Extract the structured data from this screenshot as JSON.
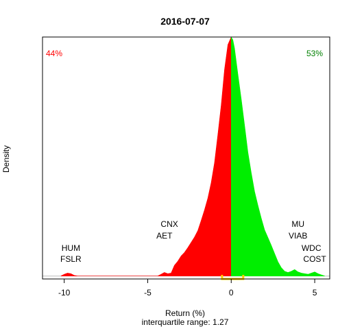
{
  "chart_data": {
    "type": "area",
    "title": "2016-07-07",
    "xlabel": "Return (%)",
    "subtitle": "interquartile range: 1.27",
    "ylabel": "Density",
    "xlim": [
      -11.3,
      5.9
    ],
    "ylim": [
      -0.005,
      0.405
    ],
    "x_ticks": [
      -10,
      -5,
      0,
      5
    ],
    "x_tick_labels": [
      "-10",
      "-5",
      "0",
      "5"
    ],
    "pct_negative": "44%",
    "pct_positive": "53%",
    "colors": {
      "negative": "#ff0000",
      "positive": "#00ee00",
      "iqr": "#ffcc00",
      "baseline": "#bebebe",
      "title": "#000000"
    },
    "iqr": [
      -0.55,
      0.72
    ],
    "split_at": 0,
    "density": {
      "x": [
        -10.2,
        -10.0,
        -9.8,
        -9.6,
        -9.4,
        -9.2,
        -4.4,
        -4.2,
        -4.0,
        -3.8,
        -3.6,
        -3.4,
        -3.2,
        -3.0,
        -2.8,
        -2.6,
        -2.4,
        -2.2,
        -2.0,
        -1.8,
        -1.6,
        -1.4,
        -1.2,
        -1.0,
        -0.8,
        -0.6,
        -0.4,
        -0.2,
        0.0,
        0.1,
        0.2,
        0.4,
        0.6,
        0.8,
        1.0,
        1.2,
        1.4,
        1.6,
        1.8,
        2.0,
        2.2,
        2.4,
        2.6,
        2.8,
        3.0,
        3.2,
        3.4,
        3.6,
        3.8,
        4.0,
        4.2,
        4.4,
        4.6,
        4.8,
        5.0,
        5.2,
        5.4,
        5.6
      ],
      "y": [
        0.0,
        0.003,
        0.005,
        0.004,
        0.001,
        0.0,
        0.0,
        0.003,
        0.006,
        0.004,
        0.005,
        0.018,
        0.025,
        0.034,
        0.04,
        0.048,
        0.057,
        0.066,
        0.077,
        0.094,
        0.112,
        0.132,
        0.158,
        0.192,
        0.24,
        0.29,
        0.35,
        0.392,
        0.405,
        0.4,
        0.386,
        0.342,
        0.3,
        0.255,
        0.21,
        0.175,
        0.143,
        0.12,
        0.098,
        0.078,
        0.065,
        0.052,
        0.038,
        0.024,
        0.014,
        0.008,
        0.006,
        0.008,
        0.011,
        0.007,
        0.005,
        0.004,
        0.003,
        0.005,
        0.007,
        0.004,
        0.002,
        0.0
      ]
    },
    "annotations": [
      {
        "text": "HUM",
        "x": -9.6
      },
      {
        "text": "FSLR",
        "x": -9.6
      },
      {
        "text": "CNX",
        "x": -3.7
      },
      {
        "text": "AET",
        "x": -4.0
      },
      {
        "text": "MU",
        "x": 4.0
      },
      {
        "text": "VIAB",
        "x": 4.0
      },
      {
        "text": "WDC",
        "x": 4.8
      },
      {
        "text": "COST",
        "x": 5.0
      }
    ],
    "grid": false,
    "legend": "none"
  }
}
